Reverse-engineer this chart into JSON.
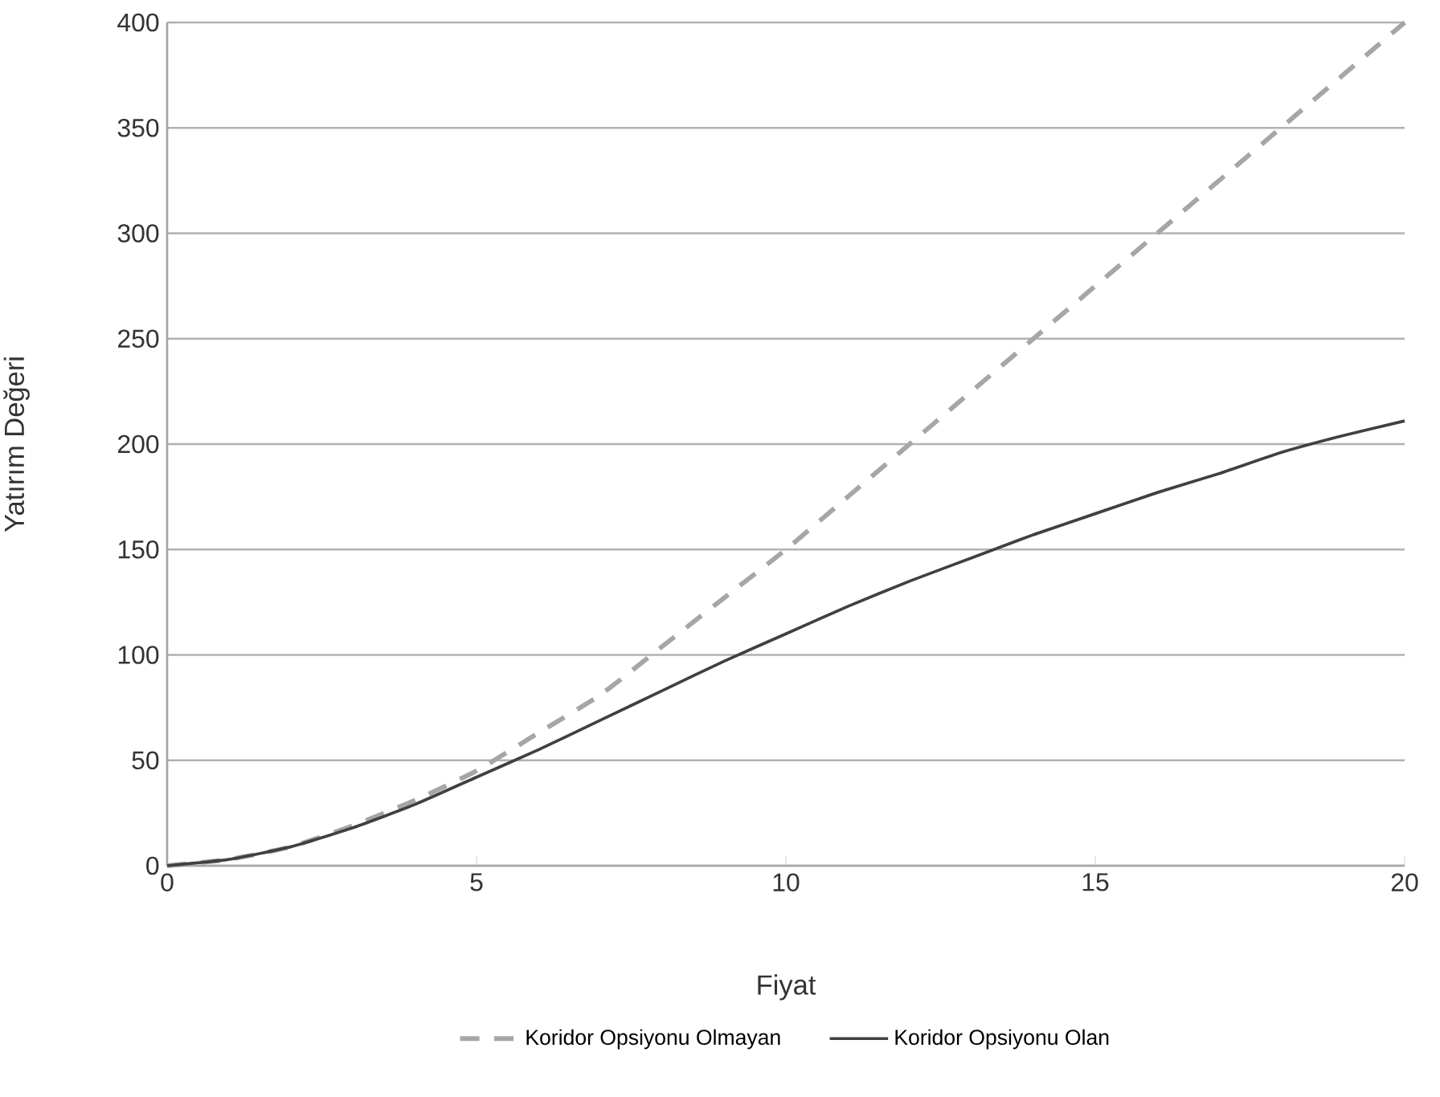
{
  "chart_data": {
    "type": "line",
    "xlabel": "Fiyat",
    "ylabel": "Yatırım Değeri",
    "xlim": [
      0,
      20
    ],
    "xticks": [
      0,
      5,
      10,
      15,
      20
    ],
    "ylim": [
      0,
      400
    ],
    "yticks": [
      0,
      50,
      100,
      150,
      200,
      250,
      300,
      350,
      400
    ],
    "grid": "y",
    "legend": "bottom",
    "marker": "none",
    "series": [
      {
        "name": "Koridor Opsiyonu Olmayan",
        "color": "#a6a6a6",
        "line_style": "dashed",
        "x": [
          0,
          1,
          2,
          3,
          4,
          5,
          6,
          7,
          8,
          9,
          10,
          11,
          12,
          14,
          16,
          18,
          20
        ],
        "values": [
          0,
          3,
          9,
          19,
          31,
          45,
          63,
          81,
          104,
          127,
          150,
          175,
          200,
          250,
          300,
          350,
          400
        ]
      },
      {
        "name": "Koridor Opsiyonu Olan",
        "color": "#404040",
        "line_style": "solid",
        "x": [
          0,
          1,
          2,
          3,
          4,
          5,
          6,
          7,
          8,
          9,
          10,
          11,
          12,
          13,
          14,
          15,
          16,
          17,
          18,
          19,
          20
        ],
        "values": [
          0,
          3,
          9,
          18,
          29,
          42,
          55,
          69,
          83,
          97,
          110,
          123,
          135,
          146,
          157,
          167,
          177,
          186,
          196,
          204,
          211
        ]
      }
    ]
  }
}
